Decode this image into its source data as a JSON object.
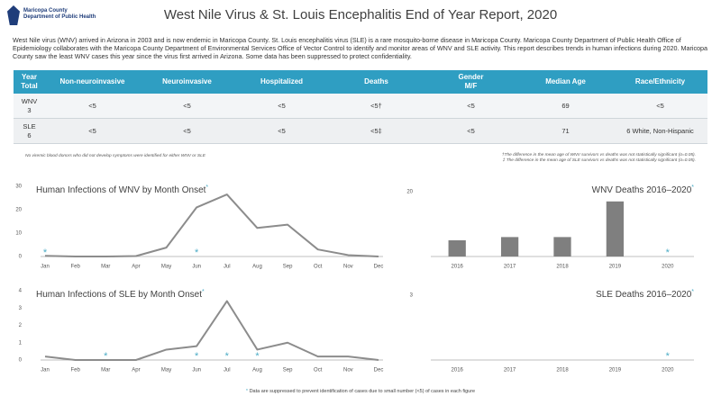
{
  "header": {
    "logo_lines": [
      "Maricopa County",
      "Department of Public Health"
    ],
    "title": "West Nile Virus & St. Louis Encephalitis End of Year Report, 2020",
    "intro": "West Nile virus (WNV) arrived in Arizona in 2003 and is now endemic in Maricopa County. St. Louis encephalitis virus (SLE) is a rare mosquito-borne disease in Maricopa County. Maricopa County Department of Public Health Office of Epidemiology collaborates with the Maricopa County Department of Environmental Services Office of Vector Control to identify and monitor areas of WNV and SLE activity. This report describes trends in human infections during 2020. Maricopa County saw the least WNV cases this year since the virus first arrived in Arizona. Some data has been suppressed to protect confidentiality."
  },
  "table": {
    "header": [
      [
        "Year",
        "Total"
      ],
      "Non-neuroinvasive",
      "Neuroinvasive",
      "Hospitalized",
      "Deaths",
      [
        "Gender",
        "M/F"
      ],
      "Median Age",
      "Race/Ethnicity"
    ],
    "rows": [
      [
        [
          "WNV",
          "3"
        ],
        "<5",
        "<5",
        "<5",
        "<5†",
        "<5",
        "69",
        "<5"
      ],
      [
        [
          "SLE",
          "6"
        ],
        "<5",
        "<5",
        "<5",
        "<5‡",
        "<5",
        "71",
        "6 White, Non-Hispanic"
      ]
    ]
  },
  "notes": {
    "left": "No viremic blood donors who did not develop symptoms were identified for either WNV or SLE",
    "right": [
      "†The difference in the mean age of WNV survivors vs deaths was not statistically significant (α=0.05).",
      "‡ The difference in the mean age of SLE survivors vs deaths was not statistically significant (α=0.05)."
    ]
  },
  "chart_data": [
    {
      "type": "line",
      "title": "Human Infections of WNV by Month Onset",
      "marker": "*",
      "color": "#8c8c8c",
      "marker_color": "#4bacc6",
      "categories": [
        "Jan",
        "Feb",
        "Mar",
        "Apr",
        "May",
        "Jun",
        "Jul",
        "Aug",
        "Sep",
        "Oct",
        "Nov",
        "Dec"
      ],
      "values": [
        0.3,
        0,
        0,
        0.2,
        3.8,
        21,
        26.5,
        12.2,
        13.6,
        3,
        0.6,
        0
      ],
      "suppressed": [
        true,
        false,
        false,
        false,
        false,
        true,
        false,
        false,
        false,
        false,
        false,
        false
      ],
      "ylim": [
        0,
        30
      ],
      "yticks": [
        0,
        10,
        20,
        30
      ],
      "grid": false
    },
    {
      "type": "bar",
      "title": "WNV Deaths 2016–2020",
      "marker": "*",
      "color": "#7f7f7f",
      "marker_color": "#4bacc6",
      "categories": [
        "2016",
        "2017",
        "2018",
        "2019",
        "2020"
      ],
      "values": [
        5,
        6,
        6,
        17,
        null
      ],
      "suppressed": [
        false,
        false,
        false,
        false,
        true
      ],
      "ylim": [
        0,
        20
      ],
      "yticks": [
        20
      ],
      "grid": false
    },
    {
      "type": "line",
      "title": "Human Infections of SLE by Month Onset",
      "marker": "*",
      "color": "#8c8c8c",
      "marker_color": "#4bacc6",
      "categories": [
        "Jan",
        "Feb",
        "Mar",
        "Apr",
        "May",
        "Jun",
        "Jul",
        "Aug",
        "Sep",
        "Oct",
        "Nov",
        "Dec"
      ],
      "values": [
        0.2,
        0,
        0,
        0,
        0.6,
        0.8,
        3.4,
        0.6,
        1,
        0.2,
        0.2,
        0
      ],
      "suppressed": [
        false,
        false,
        true,
        false,
        false,
        true,
        true,
        true,
        false,
        false,
        false,
        false
      ],
      "ylim": [
        0,
        4
      ],
      "yticks": [
        0,
        1,
        2,
        3,
        4
      ],
      "grid": false
    },
    {
      "type": "bar",
      "title": "SLE Deaths 2016–2020",
      "marker": "*",
      "color": "#7f7f7f",
      "marker_color": "#4bacc6",
      "categories": [
        "2016",
        "2017",
        "2018",
        "2019",
        "2020"
      ],
      "values": [
        0,
        0,
        0,
        0,
        null
      ],
      "suppressed": [
        false,
        false,
        false,
        false,
        true
      ],
      "ylim": [
        0,
        3
      ],
      "yticks": [
        3
      ],
      "grid": false
    }
  ],
  "footer": {
    "marker": "*",
    "text": "Data are suppressed to prevent identification of cases due to small number (<5) of cases in each figure"
  }
}
